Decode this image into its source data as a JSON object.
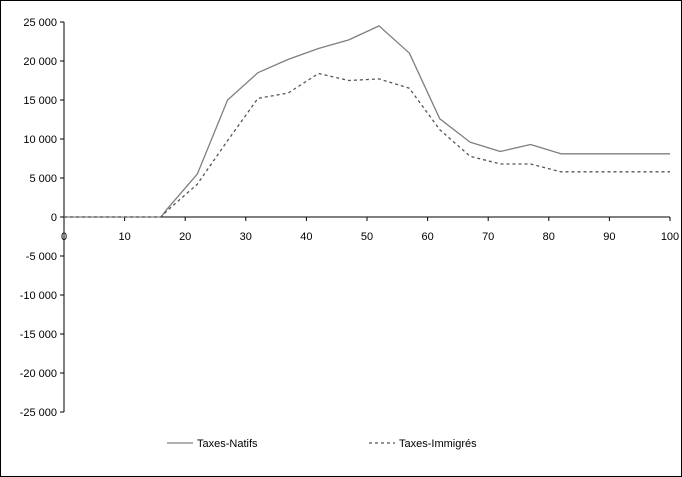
{
  "chart_data": {
    "type": "line",
    "title": "",
    "xlabel": "",
    "ylabel": "",
    "xlim": [
      0,
      100
    ],
    "ylim": [
      -25000,
      25000
    ],
    "x_ticks": [
      0,
      10,
      20,
      30,
      40,
      50,
      60,
      70,
      80,
      90,
      100
    ],
    "x_tick_labels": [
      "0",
      "10",
      "20",
      "30",
      "40",
      "50",
      "60",
      "70",
      "80",
      "90",
      "100"
    ],
    "y_ticks": [
      25000,
      20000,
      15000,
      10000,
      5000,
      0,
      -5000,
      -10000,
      -15000,
      -20000,
      -25000
    ],
    "y_tick_labels": [
      "25 000",
      "20 000",
      "15 000",
      "10 000",
      "5 000",
      "0",
      "-5 000",
      "-10 000",
      "-15 000",
      "-20 000",
      "-25 000"
    ],
    "grid": false,
    "legend_position": "bottom",
    "series": [
      {
        "name": "Taxes-Natifs",
        "style": "solid",
        "color": "#7f7f7f",
        "x": [
          0,
          16,
          17,
          22,
          27,
          32,
          37,
          42,
          47,
          52,
          57,
          62,
          67,
          72,
          77,
          82,
          87,
          92,
          97,
          100
        ],
        "y": [
          0,
          0,
          1000,
          5500,
          15000,
          18500,
          20200,
          21600,
          22700,
          24500,
          21000,
          12600,
          9600,
          8400,
          9300,
          8100,
          8100,
          8100,
          8100,
          8100
        ]
      },
      {
        "name": "Taxes-Immigrés",
        "style": "dashed",
        "color": "#555555",
        "x": [
          0,
          16,
          17,
          22,
          27,
          32,
          37,
          42,
          47,
          52,
          57,
          62,
          67,
          72,
          77,
          82,
          87,
          92,
          97,
          100
        ],
        "y": [
          0,
          0,
          800,
          4200,
          9800,
          15200,
          15900,
          18400,
          17500,
          17700,
          16500,
          11200,
          7800,
          6800,
          6800,
          5800,
          5800,
          5800,
          5800,
          5800
        ]
      }
    ]
  }
}
